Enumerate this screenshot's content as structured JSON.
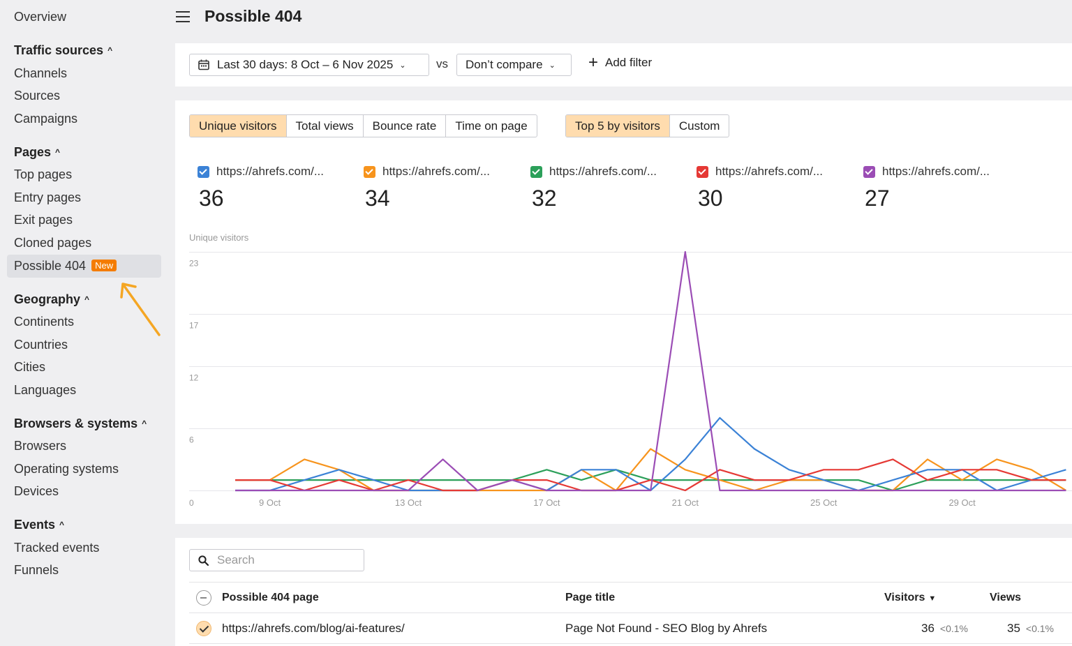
{
  "sidebar": {
    "overview": "Overview",
    "sections": [
      {
        "title": "Traffic sources",
        "items": [
          "Channels",
          "Sources",
          "Campaigns"
        ]
      },
      {
        "title": "Pages",
        "items": [
          "Top pages",
          "Entry pages",
          "Exit pages",
          "Cloned pages",
          "Possible 404"
        ]
      },
      {
        "title": "Geography",
        "items": [
          "Continents",
          "Countries",
          "Cities",
          "Languages"
        ]
      },
      {
        "title": "Browsers & systems",
        "items": [
          "Browsers",
          "Operating systems",
          "Devices"
        ]
      },
      {
        "title": "Events",
        "items": [
          "Tracked events",
          "Funnels"
        ]
      }
    ],
    "new_badge": "New"
  },
  "header": {
    "title": "Possible 404"
  },
  "filters": {
    "date_range": "Last 30 days: 8 Oct – 6 Nov 2025",
    "vs": "vs",
    "compare": "Don’t compare",
    "add_filter": "Add filter"
  },
  "metric_tabs": [
    "Unique visitors",
    "Total views",
    "Bounce rate",
    "Time on page"
  ],
  "group_tabs": [
    "Top 5 by visitors",
    "Custom"
  ],
  "series_cards": [
    {
      "label": "https://ahrefs.com/...",
      "value": "36",
      "color": "#3b82d6"
    },
    {
      "label": "https://ahrefs.com/...",
      "value": "34",
      "color": "#f7941d"
    },
    {
      "label": "https://ahrefs.com/...",
      "value": "32",
      "color": "#2ca05a"
    },
    {
      "label": "https://ahrefs.com/...",
      "value": "30",
      "color": "#e53935"
    },
    {
      "label": "https://ahrefs.com/...",
      "value": "27",
      "color": "#9b4db5"
    }
  ],
  "chart_data": {
    "type": "line",
    "ylabel": "Unique visitors",
    "y_ticks": [
      "0",
      "6",
      "12",
      "17",
      "23"
    ],
    "ylim": [
      0,
      23
    ],
    "x_tick_labels": [
      "9 Oct",
      "13 Oct",
      "17 Oct",
      "21 Oct",
      "25 Oct",
      "29 Oct"
    ],
    "x": [
      "8 Oct",
      "9 Oct",
      "10 Oct",
      "11 Oct",
      "12 Oct",
      "13 Oct",
      "14 Oct",
      "15 Oct",
      "16 Oct",
      "17 Oct",
      "18 Oct",
      "19 Oct",
      "20 Oct",
      "21 Oct",
      "22 Oct",
      "23 Oct",
      "24 Oct",
      "25 Oct",
      "26 Oct",
      "27 Oct",
      "28 Oct",
      "29 Oct",
      "30 Oct",
      "31 Oct",
      "1 Nov"
    ],
    "series": [
      {
        "color": "#3b82d6",
        "values": [
          0,
          0,
          1,
          2,
          1,
          0,
          0,
          0,
          1,
          0,
          2,
          2,
          0,
          3,
          7,
          4,
          2,
          1,
          0,
          1,
          2,
          2,
          0,
          1,
          2
        ]
      },
      {
        "color": "#f7941d",
        "values": [
          1,
          1,
          3,
          2,
          0,
          0,
          0,
          0,
          0,
          0,
          2,
          0,
          4,
          2,
          1,
          0,
          1,
          1,
          0,
          0,
          3,
          1,
          3,
          2,
          0
        ]
      },
      {
        "color": "#2ca05a",
        "values": [
          1,
          1,
          1,
          1,
          1,
          1,
          1,
          1,
          1,
          2,
          1,
          2,
          1,
          1,
          1,
          1,
          1,
          1,
          1,
          0,
          1,
          1,
          1,
          1,
          1
        ]
      },
      {
        "color": "#e53935",
        "values": [
          1,
          1,
          0,
          1,
          0,
          1,
          0,
          0,
          1,
          1,
          0,
          0,
          1,
          0,
          2,
          1,
          1,
          2,
          2,
          3,
          1,
          2,
          2,
          1,
          1
        ]
      },
      {
        "color": "#9b4db5",
        "values": [
          0,
          0,
          0,
          0,
          0,
          0,
          3,
          0,
          1,
          0,
          0,
          0,
          0,
          23,
          0,
          0,
          0,
          0,
          0,
          0,
          0,
          0,
          0,
          0,
          0
        ]
      }
    ]
  },
  "table": {
    "search_placeholder": "Search",
    "headers": {
      "page": "Possible 404 page",
      "title": "Page title",
      "visitors": "Visitors",
      "views": "Views"
    },
    "rows": [
      {
        "page": "https://ahrefs.com/blog/ai-features/",
        "title": "Page Not Found - SEO Blog by Ahrefs",
        "visitors": "36",
        "visitors_pct": "<0.1%",
        "views": "35",
        "views_pct": "<0.1%"
      }
    ]
  }
}
